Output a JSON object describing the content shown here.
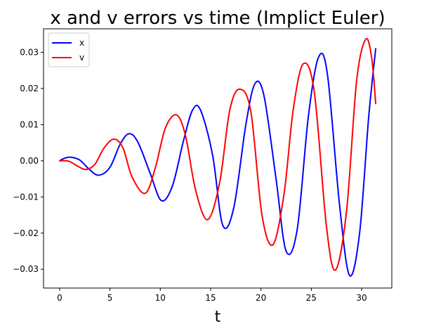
{
  "chart_data": {
    "type": "line",
    "title": "x and v errors vs time (Implict Euler)",
    "xlabel": "t",
    "ylabel": "",
    "xlim": [
      -1.6,
      33.0
    ],
    "ylim": [
      -0.0352,
      0.0365
    ],
    "xticks": [
      0,
      5,
      10,
      15,
      20,
      25,
      30
    ],
    "xtick_labels": [
      "0",
      "5",
      "10",
      "15",
      "20",
      "25",
      "30"
    ],
    "yticks": [
      -0.03,
      -0.02,
      -0.01,
      0.0,
      0.01,
      0.02,
      0.03
    ],
    "ytick_labels": [
      "−0.03",
      "−0.02",
      "−0.01",
      "0.00",
      "0.01",
      "0.02",
      "0.03"
    ],
    "grid": false,
    "legend_position": "top-left",
    "series": [
      {
        "name": "x",
        "color": "#0000ff",
        "x": [
          0,
          0.5,
          1.1,
          2.0,
          3.0,
          3.9,
          5.0,
          6.0,
          6.9,
          7.8,
          9.0,
          10.1,
          11.2,
          12.3,
          13.2,
          14.0,
          15.2,
          16.2,
          17.3,
          18.5,
          19.4,
          20.3,
          21.5,
          22.5,
          23.6,
          24.7,
          25.7,
          26.6,
          27.8,
          28.8,
          29.8,
          30.7,
          31.4
        ],
        "y": [
          0.0,
          0.0007,
          0.001,
          0.0002,
          -0.0025,
          -0.004,
          -0.0018,
          0.0045,
          0.0075,
          0.005,
          -0.0035,
          -0.011,
          -0.007,
          0.0055,
          0.014,
          0.014,
          0.0015,
          -0.0178,
          -0.013,
          0.01,
          0.0213,
          0.018,
          -0.005,
          -0.025,
          -0.019,
          0.012,
          0.0285,
          0.024,
          -0.012,
          -0.0317,
          -0.02,
          0.012,
          0.031
        ]
      },
      {
        "name": "v",
        "color": "#ff0000",
        "x": [
          0,
          0.5,
          1.0,
          1.8,
          2.6,
          3.5,
          4.4,
          5.4,
          6.3,
          7.2,
          8.5,
          9.5,
          10.5,
          11.6,
          12.5,
          13.5,
          14.7,
          15.9,
          16.9,
          17.9,
          19.0,
          20.1,
          21.2,
          22.3,
          23.2,
          24.2,
          25.3,
          26.5,
          27.4,
          28.5,
          29.5,
          30.4,
          31.0,
          31.4
        ],
        "y": [
          0.0,
          0.0,
          -0.0002,
          -0.0015,
          -0.0024,
          -0.001,
          0.0035,
          0.006,
          0.0035,
          -0.0045,
          -0.009,
          -0.002,
          0.009,
          0.0127,
          0.007,
          -0.008,
          -0.0163,
          -0.006,
          0.014,
          0.0198,
          0.0135,
          -0.015,
          -0.0232,
          -0.009,
          0.014,
          0.0268,
          0.019,
          -0.018,
          -0.0302,
          -0.014,
          0.022,
          0.0336,
          0.0285,
          0.0158
        ]
      }
    ]
  }
}
